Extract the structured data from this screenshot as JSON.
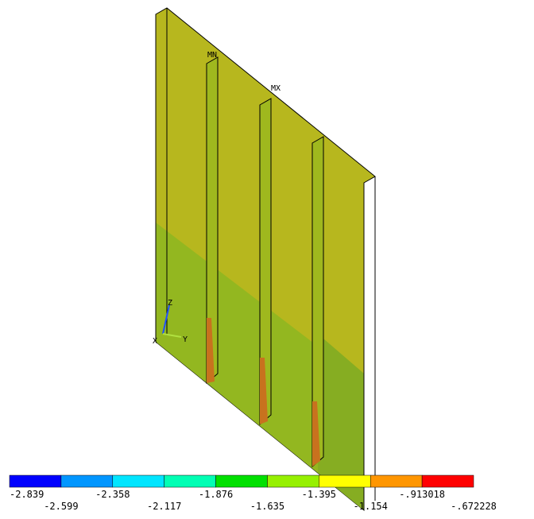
{
  "plot": {
    "labels": {
      "min": "MN",
      "max": "MX",
      "x": "X",
      "y": "Y",
      "z": "Z"
    }
  },
  "legend": {
    "colors": [
      "#0000ff",
      "#0096ff",
      "#00e5ff",
      "#00ffb4",
      "#00e000",
      "#96f000",
      "#ffff00",
      "#ff9600",
      "#ff0000"
    ],
    "labels": [
      "-2.839",
      "-2.599",
      "-2.358",
      "-2.117",
      "-1.876",
      "-1.635",
      "-1.395",
      "-1.154",
      "-.913018",
      "-.672228"
    ]
  }
}
